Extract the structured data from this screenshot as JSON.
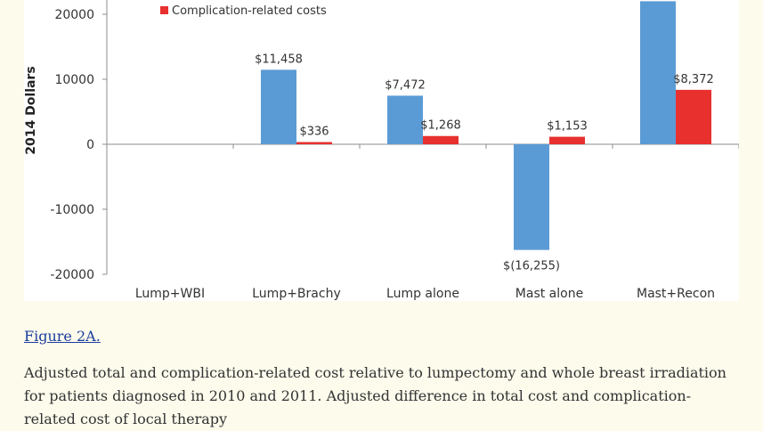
{
  "chart_data": {
    "type": "bar",
    "ylabel": "2014 Dollars",
    "ylim": [
      -20000,
      20000
    ],
    "yticks": [
      20000,
      10000,
      0,
      -10000,
      -20000
    ],
    "categories": [
      "Lump+WBI",
      "Lump+Brachy",
      "Lump alone",
      "Mast alone",
      "Mast+Recon"
    ],
    "series": [
      {
        "name": "",
        "color": "#5b9bd5",
        "values": [
          0,
          11458,
          7472,
          -16255,
          22000
        ],
        "labels": [
          "",
          "$11,458",
          "$7,472",
          "$(16,255)",
          ""
        ]
      },
      {
        "name": "Complication-related costs",
        "color": "#e8302e",
        "values": [
          0,
          336,
          1268,
          1153,
          8372
        ],
        "labels": [
          "",
          "$336",
          "$1,268",
          "$1,153",
          "$8,372"
        ]
      }
    ],
    "legend": "top-left"
  },
  "caption": {
    "figure_link": "Figure 2A.",
    "text": "Adjusted total and complication-related cost relative to lumpectomy and whole breast irradiation for patients diagnosed in 2010 and 2011. Adjusted difference in total cost and complication-related cost of local therapy"
  }
}
